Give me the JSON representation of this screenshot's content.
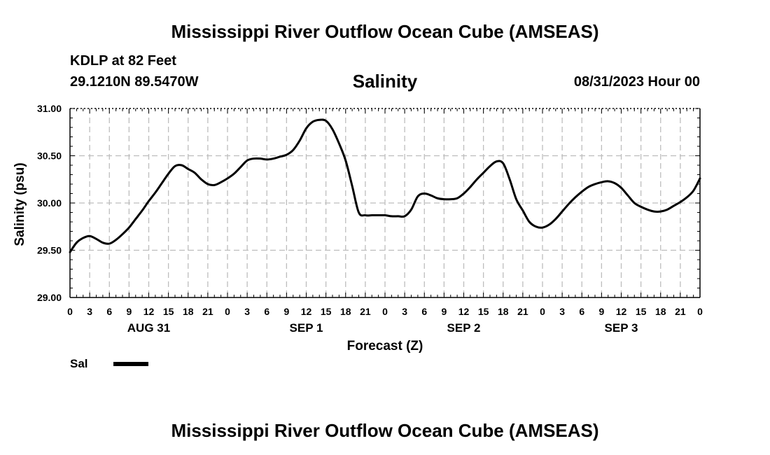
{
  "title": "Mississippi River Outflow Ocean Cube (AMSEAS)",
  "station": "KDLP at 82 Feet",
  "coords": "29.1210N  89.5470W",
  "subtitle": "Salinity",
  "datetime": "08/31/2023 Hour 00",
  "footer_title": "Mississippi River Outflow Ocean Cube (AMSEAS)",
  "chart_data": {
    "type": "line",
    "title": "Salinity",
    "xlabel": "Forecast (Z)",
    "ylabel": "Salinity (psu)",
    "xlim": [
      0,
      96
    ],
    "ylim": [
      29.0,
      31.0
    ],
    "y_ticks": [
      "29.00",
      "29.50",
      "30.00",
      "30.50",
      "31.00"
    ],
    "y_tick_values": [
      29.0,
      29.5,
      30.0,
      30.5,
      31.0
    ],
    "x_ticks": [
      "0",
      "3",
      "6",
      "9",
      "12",
      "15",
      "18",
      "21",
      "0",
      "3",
      "6",
      "9",
      "12",
      "15",
      "18",
      "21",
      "0",
      "3",
      "6",
      "9",
      "12",
      "15",
      "18",
      "21",
      "0",
      "3",
      "6",
      "9",
      "12",
      "15",
      "18",
      "21",
      "0"
    ],
    "day_labels": [
      {
        "label": "AUG 31",
        "hour": 12
      },
      {
        "label": "SEP 1",
        "hour": 36
      },
      {
        "label": "SEP 2",
        "hour": 60
      },
      {
        "label": "SEP 3",
        "hour": 84
      }
    ],
    "grid": true,
    "legend_position": "bottom-left",
    "series": [
      {
        "name": "Sal",
        "color": "#000000",
        "x": [
          0,
          1,
          2,
          3,
          4,
          5,
          6,
          7,
          8,
          9,
          10,
          11,
          12,
          13,
          14,
          15,
          16,
          17,
          18,
          19,
          20,
          21,
          22,
          23,
          24,
          25,
          26,
          27,
          28,
          29,
          30,
          31,
          32,
          33,
          34,
          35,
          36,
          37,
          38,
          39,
          40,
          41,
          42,
          43,
          44,
          45,
          46,
          47,
          48,
          49,
          50,
          51,
          52,
          53,
          54,
          55,
          56,
          57,
          58,
          59,
          60,
          61,
          62,
          63,
          64,
          65,
          66,
          67,
          68,
          69,
          70,
          71,
          72,
          73,
          74,
          75,
          76,
          77,
          78,
          79,
          80,
          81,
          82,
          83,
          84,
          85,
          86,
          87,
          88,
          89,
          90,
          91,
          92,
          93,
          94,
          95,
          96
        ],
        "values": [
          29.48,
          29.58,
          29.63,
          29.65,
          29.62,
          29.58,
          29.57,
          29.61,
          29.67,
          29.74,
          29.83,
          29.92,
          30.02,
          30.11,
          30.21,
          30.31,
          30.39,
          30.4,
          30.36,
          30.32,
          30.25,
          30.2,
          30.19,
          30.22,
          30.26,
          30.31,
          30.38,
          30.45,
          30.47,
          30.47,
          30.46,
          30.47,
          30.49,
          30.51,
          30.56,
          30.66,
          30.79,
          30.86,
          30.88,
          30.87,
          30.78,
          30.63,
          30.45,
          30.18,
          29.9,
          29.87,
          29.87,
          29.87,
          29.87,
          29.86,
          29.86,
          29.86,
          29.93,
          30.07,
          30.1,
          30.08,
          30.05,
          30.04,
          30.04,
          30.05,
          30.1,
          30.17,
          30.25,
          30.32,
          30.39,
          30.44,
          30.42,
          30.25,
          30.04,
          29.92,
          29.8,
          29.75,
          29.74,
          29.77,
          29.83,
          29.91,
          29.99,
          30.06,
          30.12,
          30.17,
          30.2,
          30.22,
          30.23,
          30.21,
          30.16,
          30.08,
          30.0,
          29.96,
          29.93,
          29.91,
          29.91,
          29.93,
          29.97,
          30.01,
          30.06,
          30.13,
          30.26
        ]
      }
    ]
  }
}
